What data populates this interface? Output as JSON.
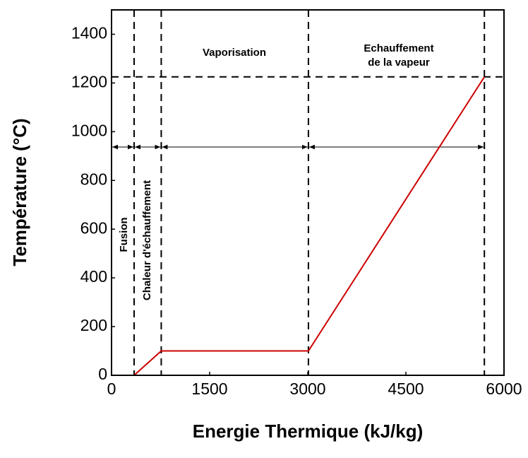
{
  "chart_data": {
    "type": "line",
    "x_label": "Energie Thermique (kJ/kg)",
    "y_label": "Température (°C)",
    "x": [
      345,
      760,
      3010,
      5700
    ],
    "values": [
      0,
      100,
      100,
      1225
    ],
    "color": "#cc0000",
    "xlim": [
      0,
      6000
    ],
    "xticks": [
      0,
      1500,
      3000,
      4500,
      6000
    ],
    "ylim": [
      0,
      1500
    ],
    "yticks": [
      0,
      200,
      400,
      600,
      800,
      1000,
      1200,
      1400
    ],
    "grid": false,
    "annotations": [
      "Vaporisation",
      "Echauffement",
      "de la vapeur",
      "Fusion",
      "Chaleur d'échauffement"
    ]
  }
}
